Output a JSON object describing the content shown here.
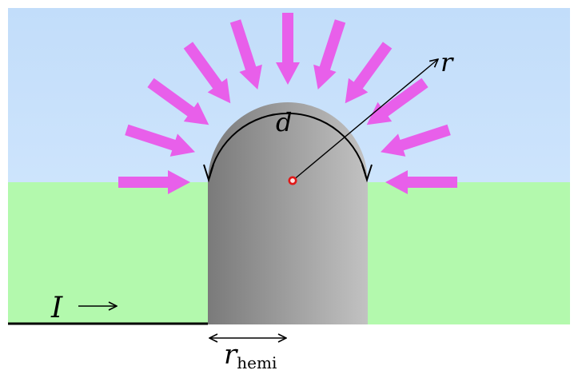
{
  "labels": {
    "radius": "r",
    "arc_distance": "d",
    "current": "I",
    "hemi_radius_main": "r",
    "hemi_radius_sub": "hemi"
  },
  "colors": {
    "sky": "#c4dffb",
    "ground": "#b3f9ad",
    "flux_arrow": "#e85fea",
    "electrode_dark": "#7d7d7d",
    "electrode_light": "#bebebe",
    "center_dot": "#e01818",
    "line": "#000000"
  },
  "flux_arrow_count": 11
}
